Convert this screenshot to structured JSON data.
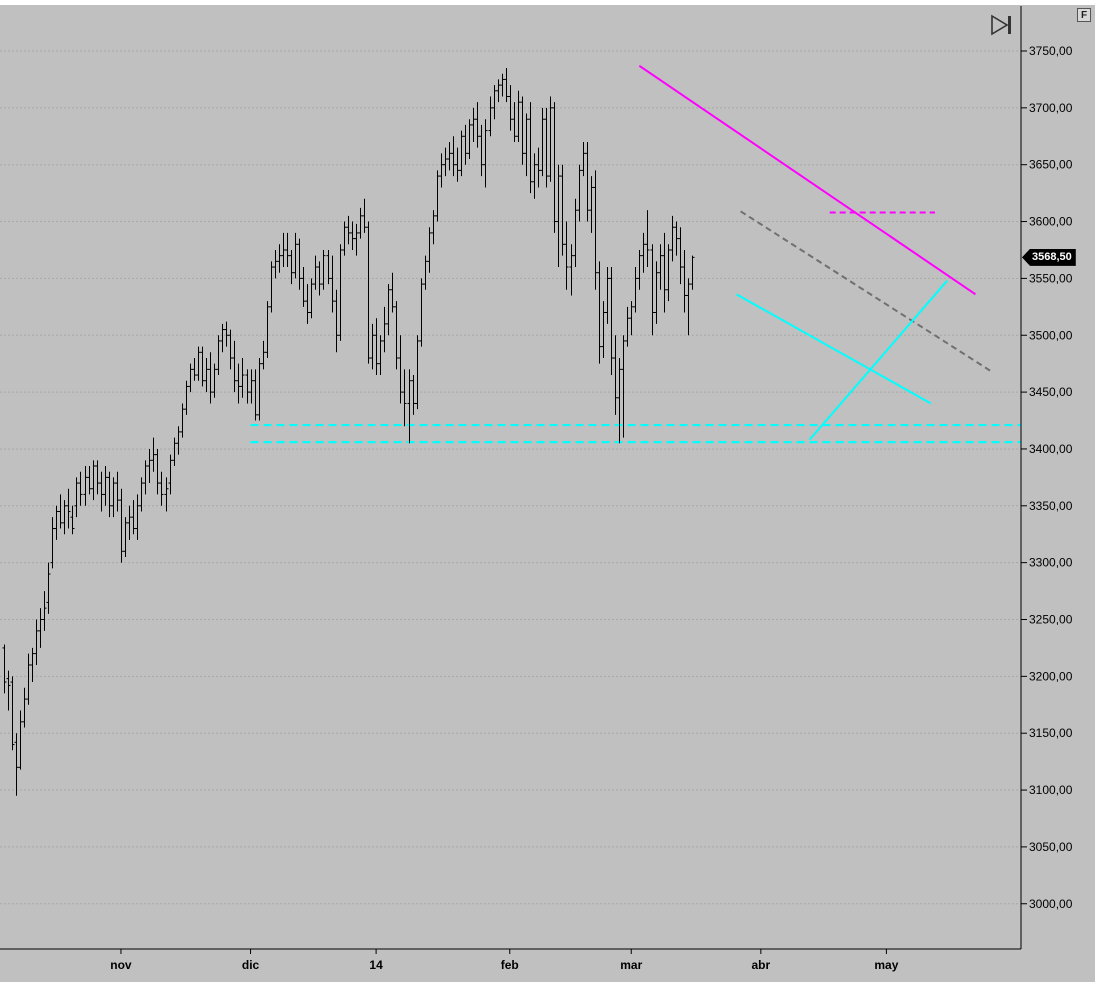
{
  "window": {
    "f_button_label": "F",
    "last_price_label": "3568,50"
  },
  "colors": {
    "background": "#c0c0c0",
    "bars": "#000000",
    "magenta": "#ff00ff",
    "cyan": "#00ffff",
    "gray_dashed": "#707070",
    "grid": "#a8a8a8"
  },
  "icons": {
    "play": "skip-to-end-icon"
  },
  "chart_data": {
    "type": "ohlc",
    "title": "",
    "xlabel": "",
    "ylabel": "",
    "ylim": [
      2955,
      3780
    ],
    "y_ticks": [
      "3750,00",
      "3700,00",
      "3650,00",
      "3600,00",
      "3550,00",
      "3500,00",
      "3450,00",
      "3400,00",
      "3350,00",
      "3300,00",
      "3250,00",
      "3200,00",
      "3150,00",
      "3100,00",
      "3050,00",
      "3000,00"
    ],
    "y_tick_values": [
      3750,
      3700,
      3650,
      3600,
      3550,
      3500,
      3450,
      3400,
      3350,
      3300,
      3250,
      3200,
      3150,
      3100,
      3050,
      3000
    ],
    "x_labels": [
      {
        "label": "nov",
        "bar": 29
      },
      {
        "label": "dic",
        "bar": 61
      },
      {
        "label": "14",
        "bar": 92
      },
      {
        "label": "feb",
        "bar": 125
      },
      {
        "label": "mar",
        "bar": 155
      },
      {
        "label": "abr",
        "bar": 187
      },
      {
        "label": "may",
        "bar": 218
      }
    ],
    "last_price": 3568.5,
    "grid": "horizontal dotted",
    "bars": [
      [
        3225,
        3228,
        3185,
        3195
      ],
      [
        3198,
        3205,
        3170,
        3192
      ],
      [
        3195,
        3200,
        3135,
        3140
      ],
      [
        3142,
        3150,
        3095,
        3120
      ],
      [
        3120,
        3170,
        3118,
        3160
      ],
      [
        3160,
        3190,
        3155,
        3180
      ],
      [
        3180,
        3220,
        3175,
        3210
      ],
      [
        3210,
        3225,
        3195,
        3220
      ],
      [
        3220,
        3250,
        3210,
        3240
      ],
      [
        3240,
        3260,
        3225,
        3250
      ],
      [
        3250,
        3275,
        3240,
        3260
      ],
      [
        3265,
        3300,
        3255,
        3290
      ],
      [
        3300,
        3340,
        3295,
        3330
      ],
      [
        3330,
        3350,
        3320,
        3345
      ],
      [
        3345,
        3360,
        3330,
        3335
      ],
      [
        3335,
        3355,
        3325,
        3350
      ],
      [
        3350,
        3365,
        3330,
        3345
      ],
      [
        3340,
        3350,
        3325,
        3330
      ],
      [
        3350,
        3375,
        3340,
        3370
      ],
      [
        3370,
        3380,
        3350,
        3360
      ],
      [
        3360,
        3385,
        3350,
        3375
      ],
      [
        3375,
        3385,
        3360,
        3365
      ],
      [
        3365,
        3390,
        3355,
        3385
      ],
      [
        3385,
        3390,
        3360,
        3370
      ],
      [
        3370,
        3380,
        3345,
        3360
      ],
      [
        3360,
        3385,
        3350,
        3375
      ],
      [
        3375,
        3380,
        3340,
        3350
      ],
      [
        3350,
        3375,
        3340,
        3370
      ],
      [
        3370,
        3380,
        3345,
        3355
      ],
      [
        3355,
        3365,
        3300,
        3310
      ],
      [
        3310,
        3340,
        3305,
        3335
      ],
      [
        3335,
        3350,
        3320,
        3340
      ],
      [
        3340,
        3355,
        3325,
        3330
      ],
      [
        3330,
        3360,
        3320,
        3350
      ],
      [
        3350,
        3375,
        3345,
        3370
      ],
      [
        3370,
        3390,
        3360,
        3385
      ],
      [
        3385,
        3400,
        3370,
        3390
      ],
      [
        3390,
        3410,
        3380,
        3395
      ],
      [
        3395,
        3400,
        3360,
        3370
      ],
      [
        3370,
        3380,
        3350,
        3360
      ],
      [
        3360,
        3375,
        3345,
        3365
      ],
      [
        3370,
        3395,
        3360,
        3390
      ],
      [
        3390,
        3410,
        3385,
        3405
      ],
      [
        3405,
        3420,
        3395,
        3415
      ],
      [
        3415,
        3440,
        3410,
        3435
      ],
      [
        3435,
        3460,
        3430,
        3455
      ],
      [
        3455,
        3475,
        3450,
        3470
      ],
      [
        3470,
        3480,
        3460,
        3465
      ],
      [
        3465,
        3490,
        3460,
        3485
      ],
      [
        3485,
        3490,
        3455,
        3460
      ],
      [
        3460,
        3480,
        3450,
        3470
      ],
      [
        3470,
        3485,
        3440,
        3450
      ],
      [
        3450,
        3475,
        3445,
        3470
      ],
      [
        3470,
        3500,
        3465,
        3495
      ],
      [
        3495,
        3510,
        3485,
        3505
      ],
      [
        3505,
        3512,
        3490,
        3500
      ],
      [
        3500,
        3505,
        3470,
        3480
      ],
      [
        3480,
        3495,
        3450,
        3460
      ],
      [
        3460,
        3475,
        3440,
        3455
      ],
      [
        3455,
        3480,
        3445,
        3465
      ],
      [
        3465,
        3470,
        3440,
        3450
      ],
      [
        3450,
        3470,
        3440,
        3460
      ],
      [
        3460,
        3470,
        3425,
        3430
      ],
      [
        3430,
        3480,
        3425,
        3475
      ],
      [
        3475,
        3495,
        3470,
        3485
      ],
      [
        3485,
        3530,
        3480,
        3525
      ],
      [
        3525,
        3565,
        3520,
        3560
      ],
      [
        3560,
        3575,
        3550,
        3565
      ],
      [
        3565,
        3580,
        3555,
        3570
      ],
      [
        3570,
        3590,
        3560,
        3575
      ],
      [
        3575,
        3590,
        3560,
        3570
      ],
      [
        3570,
        3575,
        3545,
        3555
      ],
      [
        3555,
        3590,
        3550,
        3580
      ],
      [
        3580,
        3585,
        3540,
        3550
      ],
      [
        3550,
        3560,
        3525,
        3530
      ],
      [
        3530,
        3545,
        3510,
        3520
      ],
      [
        3520,
        3550,
        3515,
        3545
      ],
      [
        3545,
        3570,
        3540,
        3560
      ],
      [
        3560,
        3565,
        3535,
        3545
      ],
      [
        3545,
        3575,
        3540,
        3570
      ],
      [
        3570,
        3575,
        3545,
        3550
      ],
      [
        3550,
        3570,
        3520,
        3530
      ],
      [
        3530,
        3540,
        3485,
        3500
      ],
      [
        3500,
        3580,
        3495,
        3575
      ],
      [
        3575,
        3600,
        3570,
        3595
      ],
      [
        3595,
        3605,
        3580,
        3590
      ],
      [
        3590,
        3600,
        3575,
        3585
      ],
      [
        3585,
        3598,
        3570,
        3590
      ],
      [
        3590,
        3612,
        3585,
        3605
      ],
      [
        3605,
        3620,
        3590,
        3595
      ],
      [
        3595,
        3600,
        3475,
        3480
      ],
      [
        3480,
        3510,
        3470,
        3500
      ],
      [
        3500,
        3515,
        3465,
        3475
      ],
      [
        3475,
        3500,
        3465,
        3495
      ],
      [
        3495,
        3525,
        3485,
        3510
      ],
      [
        3510,
        3545,
        3500,
        3540
      ],
      [
        3540,
        3555,
        3520,
        3525
      ],
      [
        3525,
        3530,
        3470,
        3480
      ],
      [
        3480,
        3500,
        3440,
        3450
      ],
      [
        3450,
        3470,
        3420,
        3440
      ],
      [
        3440,
        3470,
        3405,
        3460
      ],
      [
        3460,
        3465,
        3430,
        3440
      ],
      [
        3440,
        3500,
        3435,
        3495
      ],
      [
        3495,
        3550,
        3490,
        3545
      ],
      [
        3545,
        3570,
        3540,
        3565
      ],
      [
        3565,
        3595,
        3555,
        3590
      ],
      [
        3590,
        3610,
        3580,
        3605
      ],
      [
        3605,
        3645,
        3600,
        3640
      ],
      [
        3640,
        3660,
        3630,
        3650
      ],
      [
        3650,
        3665,
        3640,
        3655
      ],
      [
        3655,
        3670,
        3645,
        3660
      ],
      [
        3660,
        3675,
        3640,
        3650
      ],
      [
        3650,
        3665,
        3635,
        3645
      ],
      [
        3645,
        3680,
        3640,
        3675
      ],
      [
        3675,
        3685,
        3650,
        3660
      ],
      [
        3660,
        3690,
        3655,
        3685
      ],
      [
        3685,
        3700,
        3670,
        3690
      ],
      [
        3690,
        3705,
        3665,
        3675
      ],
      [
        3675,
        3685,
        3640,
        3650
      ],
      [
        3650,
        3690,
        3630,
        3680
      ],
      [
        3680,
        3710,
        3675,
        3700
      ],
      [
        3700,
        3720,
        3690,
        3715
      ],
      [
        3715,
        3725,
        3705,
        3720
      ],
      [
        3720,
        3730,
        3710,
        3725
      ],
      [
        3725,
        3735,
        3705,
        3710
      ],
      [
        3710,
        3720,
        3680,
        3690
      ],
      [
        3690,
        3705,
        3670,
        3675
      ],
      [
        3675,
        3715,
        3670,
        3705
      ],
      [
        3705,
        3710,
        3650,
        3660
      ],
      [
        3660,
        3695,
        3640,
        3690
      ],
      [
        3690,
        3705,
        3625,
        3635
      ],
      [
        3635,
        3660,
        3620,
        3650
      ],
      [
        3650,
        3665,
        3630,
        3645
      ],
      [
        3645,
        3700,
        3640,
        3690
      ],
      [
        3690,
        3700,
        3630,
        3640
      ],
      [
        3640,
        3710,
        3635,
        3700
      ],
      [
        3700,
        3705,
        3590,
        3600
      ],
      [
        3600,
        3650,
        3560,
        3640
      ],
      [
        3640,
        3650,
        3570,
        3580
      ],
      [
        3580,
        3600,
        3540,
        3560
      ],
      [
        3560,
        3580,
        3535,
        3570
      ],
      [
        3570,
        3620,
        3560,
        3610
      ],
      [
        3610,
        3650,
        3600,
        3645
      ],
      [
        3645,
        3670,
        3640,
        3660
      ],
      [
        3660,
        3670,
        3600,
        3610
      ],
      [
        3610,
        3640,
        3590,
        3630
      ],
      [
        3630,
        3645,
        3540,
        3555
      ],
      [
        3555,
        3565,
        3475,
        3490
      ],
      [
        3490,
        3530,
        3480,
        3520
      ],
      [
        3520,
        3560,
        3510,
        3550
      ],
      [
        3550,
        3560,
        3465,
        3480
      ],
      [
        3480,
        3500,
        3430,
        3445
      ],
      [
        3445,
        3480,
        3405,
        3470
      ],
      [
        3470,
        3500,
        3410,
        3495
      ],
      [
        3495,
        3525,
        3490,
        3515
      ],
      [
        3515,
        3530,
        3500,
        3525
      ],
      [
        3525,
        3560,
        3520,
        3550
      ],
      [
        3550,
        3575,
        3540,
        3570
      ],
      [
        3570,
        3590,
        3555,
        3580
      ],
      [
        3580,
        3610,
        3560,
        3575
      ],
      [
        3575,
        3580,
        3500,
        3520
      ],
      [
        3520,
        3565,
        3510,
        3555
      ],
      [
        3555,
        3580,
        3540,
        3570
      ],
      [
        3570,
        3590,
        3520,
        3540
      ],
      [
        3540,
        3580,
        3530,
        3575
      ],
      [
        3575,
        3605,
        3565,
        3595
      ],
      [
        3595,
        3600,
        3570,
        3585
      ],
      [
        3585,
        3595,
        3545,
        3560
      ],
      [
        3560,
        3575,
        3520,
        3535
      ],
      [
        3535,
        3550,
        3500,
        3545
      ],
      [
        3545,
        3570,
        3540,
        3568.5
      ]
    ],
    "annotations": [
      {
        "type": "trendline",
        "color": "magenta",
        "style": "solid",
        "from": [
          157,
          3737
        ],
        "to": [
          240,
          3536
        ]
      },
      {
        "type": "horizontal",
        "color": "magenta",
        "style": "dashed",
        "from": [
          204,
          3608
        ],
        "to": [
          230,
          3608
        ]
      },
      {
        "type": "trendline",
        "color": "gray",
        "style": "dashed",
        "from": [
          182,
          3609
        ],
        "to": [
          244,
          3468
        ]
      },
      {
        "type": "trendline",
        "color": "cyan",
        "style": "solid",
        "from": [
          181,
          3536
        ],
        "to": [
          229,
          3440
        ]
      },
      {
        "type": "trendline",
        "color": "cyan",
        "style": "solid",
        "from": [
          199,
          3408
        ],
        "to": [
          233,
          3548
        ]
      },
      {
        "type": "horizontal",
        "color": "cyan",
        "style": "dashed",
        "value": 3421,
        "from_bar": 61
      },
      {
        "type": "horizontal",
        "color": "cyan",
        "style": "dashed",
        "value": 3406,
        "from_bar": 61
      }
    ]
  }
}
